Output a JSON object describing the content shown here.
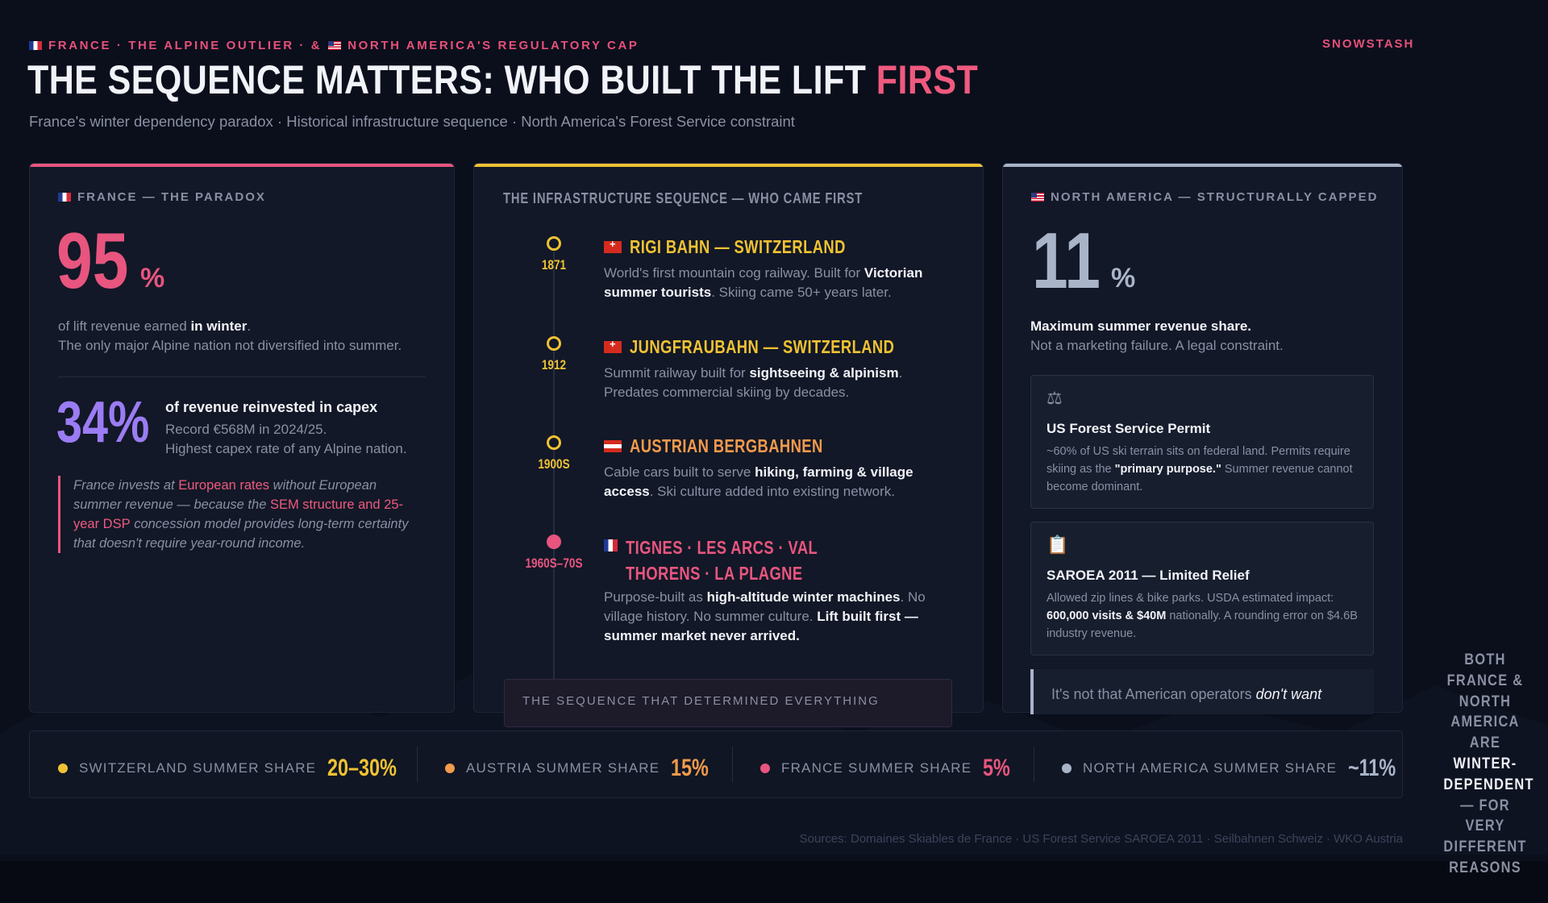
{
  "header": {
    "pre_title_a": "FRANCE · THE ALPINE OUTLIER · &",
    "pre_title_b": "NORTH AMERICA'S REGULATORY CAP",
    "brand": "SNOWSTASH",
    "title_main": "THE SEQUENCE MATTERS: WHO BUILT THE LIFT",
    "title_accent": "FIRST",
    "subtitle": "France's winter dependency paradox · Historical infrastructure sequence · North America's Forest Service constraint"
  },
  "colors": {
    "pink": "#e8557f",
    "yellow": "#f0c233",
    "orange": "#f39a4c",
    "purple": "#9b7cf4",
    "slate": "#a9b4c8",
    "background": "#0b0f1c"
  },
  "france": {
    "label": "FRANCE — THE PARADOX",
    "big_value": "95",
    "big_unit": "%",
    "line1_pre": "of lift revenue earned",
    "line1_bold": "in winter",
    "line1_post": ".",
    "line2": "The only major Alpine nation not diversified into summer.",
    "capex_value": "34%",
    "capex_title": "of revenue reinvested in capex",
    "capex_line1": "Record €568M in 2024/25.",
    "capex_line2": "Highest capex rate of any Alpine nation.",
    "quote_1": "France invests at",
    "quote_2": "European rates",
    "quote_3": "without European summer revenue — because the",
    "quote_4": "SEM structure and 25-year DSP",
    "quote_5": "concession model provides long-term certainty that doesn't require year-round income."
  },
  "sequence": {
    "title": "THE INFRASTRUCTURE SEQUENCE — WHO CAME FIRST",
    "events": [
      {
        "year": "1871",
        "title": "RIGI BAHN — SWITZERLAND",
        "desc_1": "World's first mountain cog railway. Built for",
        "desc_bold": "Victorian summer tourists",
        "desc_2": ". Skiing came 50+ years later."
      },
      {
        "year": "1912",
        "title": "JUNGFRAUBAHN — SWITZERLAND",
        "desc_1": "Summit railway built for",
        "desc_bold": "sightseeing & alpinism",
        "desc_2": ". Predates commercial skiing by decades."
      },
      {
        "year": "1900S",
        "title": "AUSTRIAN BERGBAHNEN",
        "desc_1": "Cable cars built to serve",
        "desc_bold": "hiking, farming & village access",
        "desc_2": ". Ski culture added into existing network."
      },
      {
        "year": "1960S–70S",
        "title": "TIGNES · LES ARCS · VAL THORENS · LA PLAGNE",
        "desc_1": "Purpose-built as",
        "desc_bold": "high-altitude winter machines",
        "desc_2": ". No village history. No summer culture.",
        "desc_bold2": "Lift built first — summer market never arrived."
      }
    ],
    "box_label": "THE SEQUENCE THAT DETERMINED EVERYTHING"
  },
  "north_america": {
    "label": "NORTH AMERICA — STRUCTURALLY CAPPED",
    "big_value": "11",
    "big_unit": "%",
    "line1": "Maximum summer revenue share.",
    "line2": "Not a marketing failure. A legal constraint.",
    "card1_icon": "scale-icon",
    "card1_title": "US Forest Service Permit",
    "card1_desc_1": "~60% of US ski terrain sits on federal land. Permits require skiing as the",
    "card1_desc_bold": "\"primary purpose.\"",
    "card1_desc_2": "Summer revenue cannot become dominant.",
    "card2_icon": "clipboard-icon",
    "card2_title": "SAROEA 2011 — Limited Relief",
    "card2_desc_1": "Allowed zip lines & bike parks. USDA estimated impact:",
    "card2_desc_bold": "600,000 visits & $40M",
    "card2_desc_2": "nationally. A rounding error on $4.6B industry revenue.",
    "callout_1": "It's not that American operators",
    "callout_2": "don't want"
  },
  "stats": [
    {
      "label": "SWITZERLAND SUMMER SHARE",
      "value": "20–30%",
      "color": "#f0c233"
    },
    {
      "label": "AUSTRIA SUMMER SHARE",
      "value": "15%",
      "color": "#f39a4c"
    },
    {
      "label": "FRANCE SUMMER SHARE",
      "value": "5%",
      "color": "#e8557f"
    },
    {
      "label": "NORTH AMERICA SUMMER SHARE",
      "value": "~11%",
      "color": "#a9b4c8"
    }
  ],
  "side_note": {
    "part_1": "BOTH FRANCE & NORTH AMERICA ARE",
    "part_2": "WINTER-DEPENDENT",
    "part_3": "— FOR VERY DIFFERENT REASONS"
  },
  "sources": "Sources: Domaines Skiables de France · US Forest Service SAROEA 2011 · Seilbahnen Schweiz · WKO Austria"
}
